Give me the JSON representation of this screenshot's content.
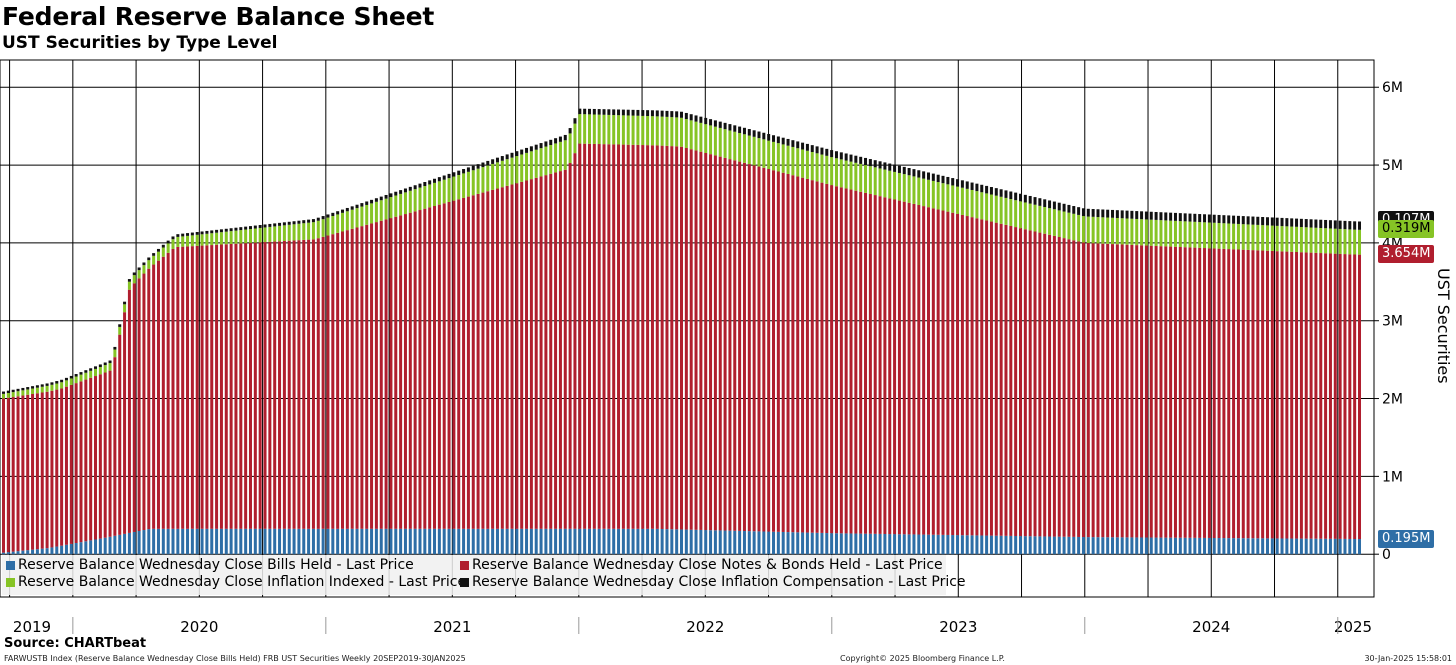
{
  "chart_data": {
    "type": "bar",
    "stacked": true,
    "title": "Federal Reserve Balance Sheet",
    "subtitle": "UST Securities by Type Level",
    "ylabel": "UST Securities",
    "ylim": [
      -0.55,
      6.35
    ],
    "yticks": [
      "0",
      "1M",
      "2M",
      "3M",
      "4M",
      "5M",
      "6M"
    ],
    "xlabels": [
      "2019",
      "2020",
      "2021",
      "2022",
      "2023",
      "2024",
      "2025"
    ],
    "x_range": [
      "2019-09-20",
      "2025-01-30"
    ],
    "series": [
      {
        "name": "Reserve Balance Wednesday Close Bills Held - Last Price",
        "color": "#2e6ea6",
        "keyframes": [
          [
            2019.72,
            0.02
          ],
          [
            2019.9,
            0.08
          ],
          [
            2020.12,
            0.21
          ],
          [
            2020.3,
            0.326
          ],
          [
            2022.3,
            0.326
          ],
          [
            2023.0,
            0.27
          ],
          [
            2024.0,
            0.22
          ],
          [
            2025.08,
            0.195
          ]
        ]
      },
      {
        "name": "Reserve Balance Wednesday Close Notes & Bonds Held - Last Price",
        "color": "#b01e2e",
        "keyframes": [
          [
            2019.72,
            1.98
          ],
          [
            2019.95,
            2.02
          ],
          [
            2020.15,
            2.14
          ],
          [
            2020.22,
            3.15
          ],
          [
            2020.4,
            3.62
          ],
          [
            2020.95,
            3.72
          ],
          [
            2021.95,
            4.62
          ],
          [
            2022.0,
            4.95
          ],
          [
            2022.4,
            4.92
          ],
          [
            2023.0,
            4.47
          ],
          [
            2024.0,
            3.78
          ],
          [
            2025.08,
            3.654
          ]
        ]
      },
      {
        "name": "Reserve Balance Wednesday Close Inflation Indexed - Last Price",
        "color": "#86c425",
        "keyframes": [
          [
            2019.72,
            0.06
          ],
          [
            2020.3,
            0.11
          ],
          [
            2021.0,
            0.23
          ],
          [
            2021.95,
            0.38
          ],
          [
            2022.5,
            0.37
          ],
          [
            2023.0,
            0.36
          ],
          [
            2024.0,
            0.34
          ],
          [
            2025.08,
            0.319
          ]
        ]
      },
      {
        "name": "Reserve Balance Wednesday Close Inflation Compensation - Last Price",
        "color": "#111111",
        "keyframes": [
          [
            2019.72,
            0.03
          ],
          [
            2021.0,
            0.04
          ],
          [
            2022.0,
            0.07
          ],
          [
            2023.0,
            0.09
          ],
          [
            2024.0,
            0.1
          ],
          [
            2025.08,
            0.107
          ]
        ]
      }
    ],
    "last_values": [
      {
        "label": "0.107M",
        "value": 0.107,
        "color": "#111111"
      },
      {
        "label": "0.319M",
        "value": 0.319,
        "color": "#86c425"
      },
      {
        "label": "3.654M",
        "value": 3.654,
        "color": "#b01e2e"
      },
      {
        "label": "0.195M",
        "value": 0.195,
        "color": "#2e6ea6"
      }
    ],
    "legend_position": "bottom-left"
  },
  "source": "Source: CHARTbeat",
  "footer": {
    "left": "FARWUSTB Index (Reserve Balance Wednesday Close Bills Held) FRB UST Securities  Weekly 20SEP2019-30JAN2025",
    "mid": "Copyright© 2025 Bloomberg Finance L.P.",
    "right": "30-Jan-2025 15:58:01"
  }
}
